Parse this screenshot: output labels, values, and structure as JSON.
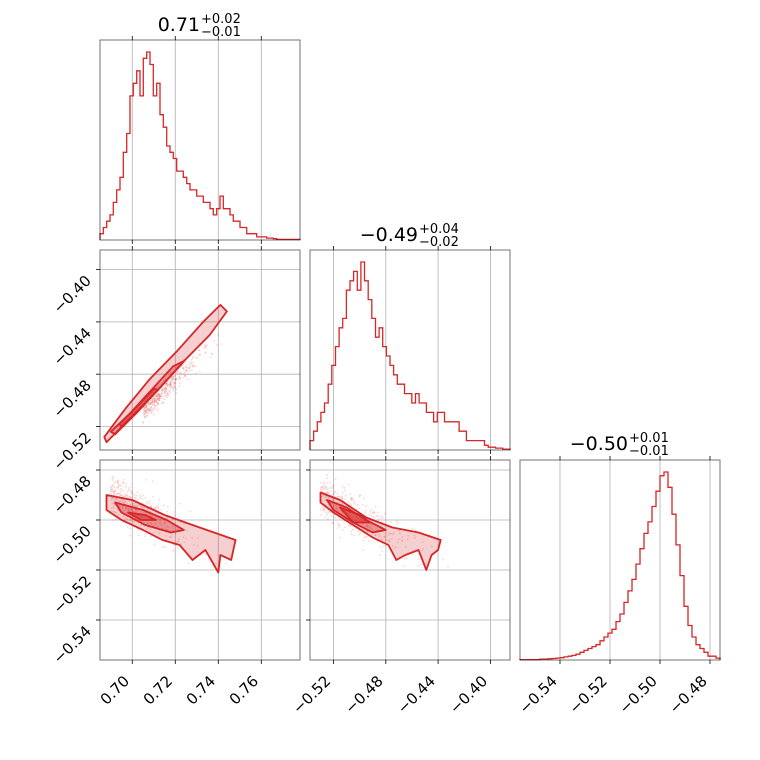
{
  "chart_data": {
    "type": "corner",
    "color": "#d62728",
    "titles": [
      {
        "main": "0.71",
        "plus": "+0.02",
        "minus": "−0.01"
      },
      {
        "main": "−0.49",
        "plus": "+0.04",
        "minus": "−0.02"
      },
      {
        "main": "−0.50",
        "plus": "+0.01",
        "minus": "−0.01"
      }
    ],
    "ranges": [
      [
        0.685,
        0.778
      ],
      [
        -0.538,
        -0.385
      ],
      [
        -0.556,
        -0.476
      ]
    ],
    "ticks": [
      {
        "values": [
          0.7,
          0.72,
          0.74,
          0.76
        ],
        "labels": [
          "0.70",
          "0.72",
          "0.74",
          "0.76"
        ]
      },
      {
        "values": [
          -0.52,
          -0.48,
          -0.44,
          -0.4
        ],
        "labels": [
          "−0.52",
          "−0.48",
          "−0.44",
          "−0.40"
        ]
      },
      {
        "values": [
          -0.54,
          -0.52,
          -0.5,
          -0.48
        ],
        "labels": [
          "−0.54",
          "−0.52",
          "−0.50",
          "−0.48"
        ]
      }
    ],
    "hist1": [
      1,
      2,
      3,
      4,
      6,
      8,
      10,
      14,
      17,
      23,
      25,
      27,
      23,
      29,
      30,
      28,
      23,
      25,
      20,
      18,
      15,
      14,
      13,
      11,
      11,
      10,
      9,
      8,
      8,
      7,
      7,
      6,
      6,
      5,
      4,
      5,
      7,
      5,
      5,
      4,
      3,
      3,
      2,
      2,
      1,
      1,
      1,
      0.5,
      0.5,
      0.5,
      0.3,
      0.3,
      0.2,
      0.1,
      0.1,
      0.1,
      0.1,
      0.1,
      0.1,
      0.1
    ],
    "hist2": [
      1,
      2,
      3,
      4,
      5,
      7,
      9,
      11,
      13,
      14,
      17,
      18,
      19,
      17,
      20,
      18,
      16,
      14,
      12,
      13,
      11,
      10,
      9,
      8,
      7,
      7,
      6,
      6,
      5,
      6,
      5,
      5,
      4,
      4,
      3,
      4,
      4,
      3,
      3,
      3,
      3,
      2,
      2,
      1,
      1,
      1,
      1,
      1,
      0.5,
      0.3,
      0.3,
      0.2,
      0.2,
      0.1,
      0.1
    ],
    "hist3": [
      0.1,
      0.1,
      0.1,
      0.1,
      0.1,
      0.2,
      0.2,
      0.3,
      0.4,
      0.5,
      0.6,
      0.8,
      1,
      1.2,
      1.5,
      2,
      2.5,
      3,
      3.5,
      4,
      5,
      6,
      7,
      8,
      10,
      12,
      15,
      18,
      21,
      25,
      29,
      33,
      36,
      40,
      44,
      48,
      49,
      45,
      38,
      30,
      22,
      14,
      9,
      6,
      4,
      3,
      2,
      1,
      1,
      0.5
    ],
    "contour12": [
      [
        [
          0.688,
          -0.532
        ],
        [
          0.7,
          -0.512
        ],
        [
          0.712,
          -0.492
        ],
        [
          0.724,
          -0.47
        ],
        [
          0.736,
          -0.45
        ],
        [
          0.744,
          -0.432
        ],
        [
          0.741,
          -0.427
        ],
        [
          0.733,
          -0.44
        ],
        [
          0.721,
          -0.462
        ],
        [
          0.708,
          -0.484
        ],
        [
          0.697,
          -0.506
        ],
        [
          0.687,
          -0.528
        ]
      ],
      [
        [
          0.692,
          -0.526
        ],
        [
          0.703,
          -0.508
        ],
        [
          0.713,
          -0.49
        ],
        [
          0.722,
          -0.474
        ],
        [
          0.724,
          -0.47
        ],
        [
          0.719,
          -0.474
        ],
        [
          0.71,
          -0.49
        ],
        [
          0.699,
          -0.51
        ],
        [
          0.69,
          -0.524
        ]
      ],
      [
        [
          0.695,
          -0.52
        ],
        [
          0.705,
          -0.504
        ],
        [
          0.712,
          -0.492
        ],
        [
          0.71,
          -0.491
        ],
        [
          0.702,
          -0.505
        ],
        [
          0.694,
          -0.518
        ]
      ]
    ],
    "contour13": [
      [
        [
          0.688,
          -0.49
        ],
        [
          0.7,
          -0.492
        ],
        [
          0.715,
          -0.498
        ],
        [
          0.728,
          -0.502
        ],
        [
          0.738,
          -0.505
        ],
        [
          0.748,
          -0.508
        ],
        [
          0.746,
          -0.516
        ],
        [
          0.741,
          -0.514
        ],
        [
          0.74,
          -0.521
        ],
        [
          0.734,
          -0.512
        ],
        [
          0.728,
          -0.516
        ],
        [
          0.722,
          -0.51
        ],
        [
          0.714,
          -0.508
        ],
        [
          0.705,
          -0.504
        ],
        [
          0.695,
          -0.5
        ],
        [
          0.688,
          -0.496
        ]
      ],
      [
        [
          0.692,
          -0.493
        ],
        [
          0.705,
          -0.496
        ],
        [
          0.716,
          -0.5
        ],
        [
          0.724,
          -0.504
        ],
        [
          0.718,
          -0.505
        ],
        [
          0.706,
          -0.502
        ],
        [
          0.695,
          -0.497
        ]
      ],
      [
        [
          0.698,
          -0.497
        ],
        [
          0.706,
          -0.498
        ],
        [
          0.711,
          -0.5
        ],
        [
          0.704,
          -0.5
        ]
      ]
    ],
    "contour23": [
      [
        [
          -0.53,
          -0.489
        ],
        [
          -0.515,
          -0.492
        ],
        [
          -0.495,
          -0.499
        ],
        [
          -0.475,
          -0.503
        ],
        [
          -0.455,
          -0.505
        ],
        [
          -0.438,
          -0.508
        ],
        [
          -0.44,
          -0.512
        ],
        [
          -0.445,
          -0.514
        ],
        [
          -0.449,
          -0.52
        ],
        [
          -0.455,
          -0.512
        ],
        [
          -0.465,
          -0.514
        ],
        [
          -0.472,
          -0.516
        ],
        [
          -0.478,
          -0.51
        ],
        [
          -0.49,
          -0.507
        ],
        [
          -0.505,
          -0.502
        ],
        [
          -0.52,
          -0.497
        ],
        [
          -0.53,
          -0.493
        ]
      ],
      [
        [
          -0.525,
          -0.492
        ],
        [
          -0.51,
          -0.495
        ],
        [
          -0.495,
          -0.5
        ],
        [
          -0.48,
          -0.504
        ],
        [
          -0.49,
          -0.505
        ],
        [
          -0.505,
          -0.501
        ],
        [
          -0.52,
          -0.496
        ]
      ],
      [
        [
          -0.515,
          -0.495
        ],
        [
          -0.5,
          -0.498
        ],
        [
          -0.492,
          -0.501
        ],
        [
          -0.505,
          -0.501
        ]
      ]
    ]
  }
}
